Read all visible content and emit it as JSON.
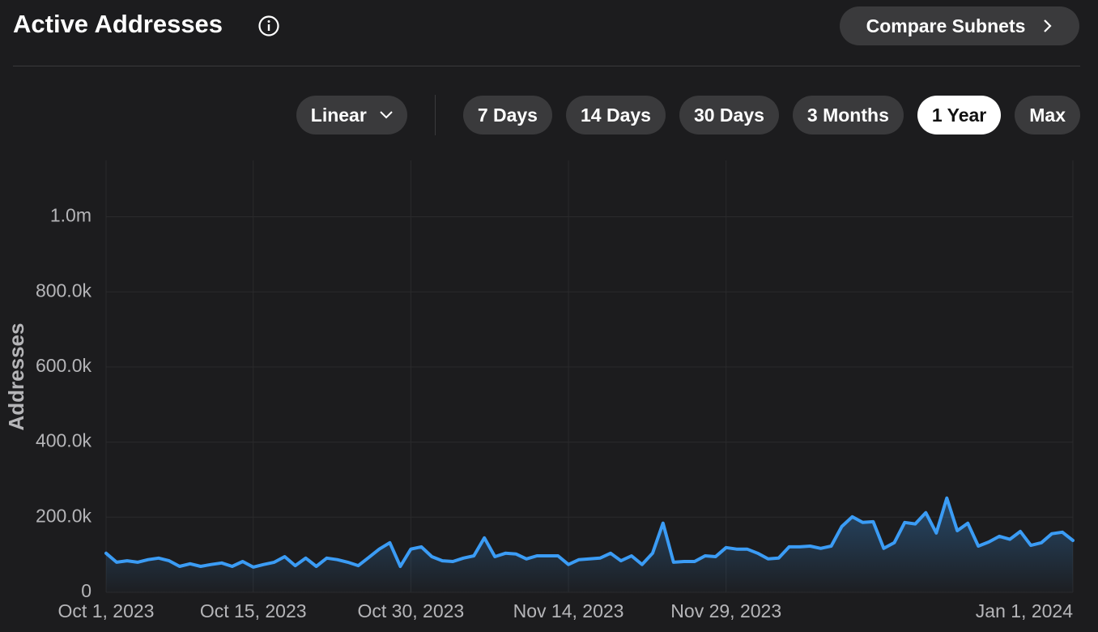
{
  "header": {
    "title": "Active Addresses",
    "compare": "Compare Subnets"
  },
  "controls": {
    "scale": "Linear",
    "ranges": [
      "7 Days",
      "14 Days",
      "30 Days",
      "3 Months",
      "1 Year",
      "Max"
    ],
    "active_range": 4
  },
  "chart_data": {
    "type": "line",
    "y_label": "Addresses",
    "x": [
      "2023-10-01",
      "2023-10-02",
      "2023-10-03",
      "2023-10-04",
      "2023-10-05",
      "2023-10-06",
      "2023-10-07",
      "2023-10-08",
      "2023-10-09",
      "2023-10-10",
      "2023-10-11",
      "2023-10-12",
      "2023-10-13",
      "2023-10-14",
      "2023-10-15",
      "2023-10-16",
      "2023-10-17",
      "2023-10-18",
      "2023-10-19",
      "2023-10-20",
      "2023-10-21",
      "2023-10-22",
      "2023-10-23",
      "2023-10-24",
      "2023-10-25",
      "2023-10-26",
      "2023-10-27",
      "2023-10-28",
      "2023-10-29",
      "2023-10-30",
      "2023-10-31",
      "2023-11-01",
      "2023-11-02",
      "2023-11-03",
      "2023-11-04",
      "2023-11-05",
      "2023-11-06",
      "2023-11-07",
      "2023-11-08",
      "2023-11-09",
      "2023-11-10",
      "2023-11-11",
      "2023-11-12",
      "2023-11-13",
      "2023-11-14",
      "2023-11-15",
      "2023-11-16",
      "2023-11-17",
      "2023-11-18",
      "2023-11-19",
      "2023-11-20",
      "2023-11-21",
      "2023-11-22",
      "2023-11-23",
      "2023-11-24",
      "2023-11-25",
      "2023-11-26",
      "2023-11-27",
      "2023-11-28",
      "2023-11-29",
      "2023-11-30",
      "2023-12-01",
      "2023-12-02",
      "2023-12-03",
      "2023-12-04",
      "2023-12-05",
      "2023-12-06",
      "2023-12-07",
      "2023-12-08",
      "2023-12-09",
      "2023-12-10",
      "2023-12-11",
      "2023-12-12",
      "2023-12-13",
      "2023-12-14",
      "2023-12-15",
      "2023-12-16",
      "2023-12-17",
      "2023-12-18",
      "2023-12-19",
      "2023-12-20",
      "2023-12-21",
      "2023-12-22",
      "2023-12-23",
      "2023-12-24",
      "2023-12-25",
      "2023-12-26",
      "2023-12-27",
      "2023-12-28",
      "2023-12-29",
      "2023-12-30",
      "2023-12-31",
      "2024-01-01"
    ],
    "series": [
      {
        "color": "#3b9cf5",
        "values": [
          104000,
          80000,
          84000,
          80000,
          87000,
          91000,
          84000,
          69000,
          76000,
          69000,
          74000,
          78000,
          69000,
          82000,
          67000,
          74000,
          80000,
          95000,
          71000,
          91000,
          69000,
          91000,
          87000,
          80000,
          71000,
          93000,
          115000,
          132000,
          69000,
          115000,
          121000,
          95000,
          84000,
          82000,
          91000,
          97000,
          145000,
          95000,
          104000,
          102000,
          89000,
          97000,
          97000,
          97000,
          74000,
          87000,
          89000,
          91000,
          104000,
          84000,
          97000,
          74000,
          104000,
          184000,
          80000,
          82000,
          82000,
          97000,
          95000,
          119000,
          115000,
          115000,
          104000,
          89000,
          91000,
          121000,
          121000,
          123000,
          117000,
          123000,
          175000,
          201000,
          186000,
          188000,
          117000,
          132000,
          186000,
          182000,
          212000,
          158000,
          251000,
          164000,
          184000,
          123000,
          134000,
          149000,
          141000,
          162000,
          125000,
          132000,
          156000,
          160000,
          138000
        ]
      }
    ],
    "xlim": [
      "2023-10-01",
      "2024-01-01"
    ],
    "xticks": [
      {
        "value": "2023-10-01",
        "label": "Oct 1, 2023"
      },
      {
        "value": "2023-10-15",
        "label": "Oct 15, 2023"
      },
      {
        "value": "2023-10-30",
        "label": "Oct 30, 2023"
      },
      {
        "value": "2023-11-14",
        "label": "Nov 14, 2023"
      },
      {
        "value": "2023-11-29",
        "label": "Nov 29, 2023"
      },
      {
        "value": "2024-01-01",
        "label": "Jan 1, 2024"
      }
    ],
    "ylim": [
      0,
      1150000
    ],
    "yticks": [
      0,
      {
        "value": 200000,
        "label": "200.0k"
      },
      {
        "value": 400000,
        "label": "400.0k"
      },
      {
        "value": 600000,
        "label": "600.0k"
      },
      {
        "value": 800000,
        "label": "800.0k"
      },
      {
        "value": 1000000,
        "label": "1.0m"
      }
    ],
    "grid": true
  }
}
